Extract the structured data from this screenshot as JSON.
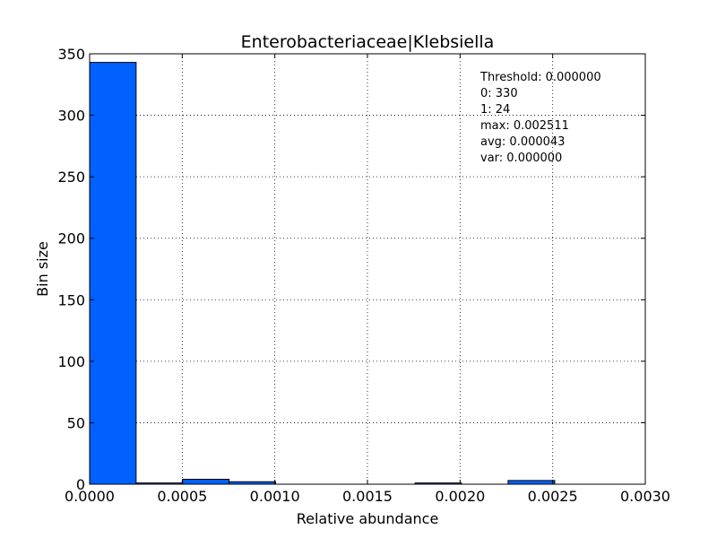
{
  "chart_data": {
    "type": "bar",
    "title": "Enterobacteriaceae|Klebsiella",
    "xlabel": "Relative abundance",
    "ylabel": "Bin size",
    "xlim": [
      0,
      0.003
    ],
    "ylim": [
      0,
      350
    ],
    "x_ticks": [
      "0.0000",
      "0.0005",
      "0.0010",
      "0.0015",
      "0.0020",
      "0.0025",
      "0.0030"
    ],
    "y_ticks": [
      "0",
      "50",
      "100",
      "150",
      "200",
      "250",
      "300",
      "350"
    ],
    "grid": true,
    "bar_color": "#0061ff",
    "bins": [
      {
        "x0": 0.0,
        "x1": 0.000251,
        "value": 343
      },
      {
        "x0": 0.000251,
        "x1": 0.000502,
        "value": 1
      },
      {
        "x0": 0.000502,
        "x1": 0.000753,
        "value": 4
      },
      {
        "x0": 0.000753,
        "x1": 0.001004,
        "value": 2
      },
      {
        "x0": 0.001004,
        "x1": 0.001255,
        "value": 0
      },
      {
        "x0": 0.001255,
        "x1": 0.001506,
        "value": 0
      },
      {
        "x0": 0.001506,
        "x1": 0.001757,
        "value": 0
      },
      {
        "x0": 0.001757,
        "x1": 0.002008,
        "value": 1
      },
      {
        "x0": 0.002008,
        "x1": 0.002259,
        "value": 0
      },
      {
        "x0": 0.002259,
        "x1": 0.002511,
        "value": 3
      }
    ],
    "annotations": [
      "Threshold: 0.000000",
      "0: 330",
      "1: 24",
      "max: 0.002511",
      "avg: 0.000043",
      "var: 0.000000"
    ]
  }
}
